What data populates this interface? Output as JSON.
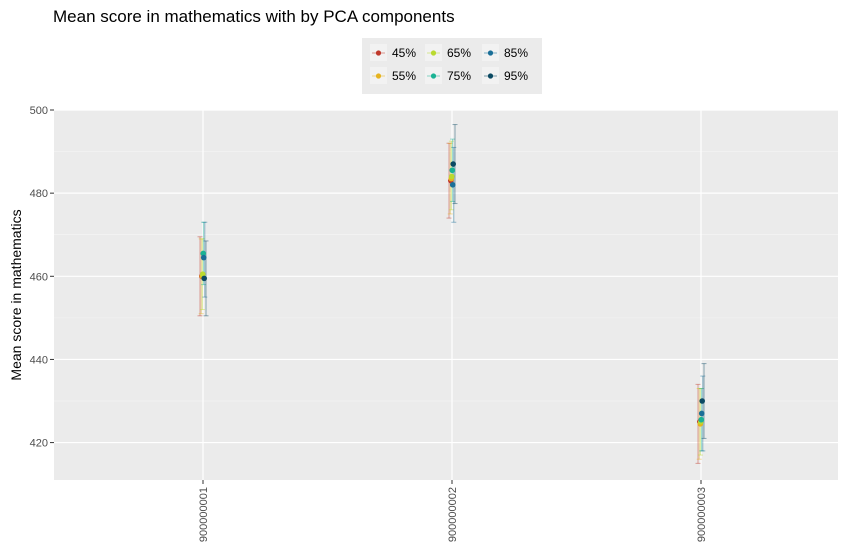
{
  "chart_data": {
    "type": "scatter",
    "title": "Mean score in mathematics with by PCA components",
    "xlabel": "",
    "ylabel": "Mean score in mathematics",
    "categories": [
      "900000001",
      "900000002",
      "900000003"
    ],
    "ylim": [
      411,
      500
    ],
    "yticks": [
      420,
      440,
      460,
      480,
      500
    ],
    "grid": true,
    "legend_position": "top",
    "error_bars": true,
    "series": [
      {
        "name": "45%",
        "color": "#c0392b",
        "points": [
          {
            "y": 460,
            "lo": 450.5,
            "hi": 469.5
          },
          {
            "y": 483,
            "lo": 474,
            "hi": 492
          },
          {
            "y": 425,
            "lo": 415,
            "hi": 434
          }
        ]
      },
      {
        "name": "55%",
        "color": "#e6b31e",
        "points": [
          {
            "y": 460,
            "lo": 451,
            "hi": 469
          },
          {
            "y": 483.5,
            "lo": 475,
            "hi": 492
          },
          {
            "y": 424.5,
            "lo": 416,
            "hi": 433
          }
        ]
      },
      {
        "name": "65%",
        "color": "#bada2f",
        "points": [
          {
            "y": 460.5,
            "lo": 452,
            "hi": 469
          },
          {
            "y": 484,
            "lo": 476,
            "hi": 492.5
          },
          {
            "y": 425,
            "lo": 417,
            "hi": 433
          }
        ]
      },
      {
        "name": "75%",
        "color": "#1ab394",
        "points": [
          {
            "y": 465.5,
            "lo": 458,
            "hi": 473
          },
          {
            "y": 485.5,
            "lo": 478,
            "hi": 493
          },
          {
            "y": 425.5,
            "lo": 418,
            "hi": 433
          }
        ]
      },
      {
        "name": "85%",
        "color": "#1a6f98",
        "points": [
          {
            "y": 464.5,
            "lo": 455,
            "hi": 473
          },
          {
            "y": 482,
            "lo": 473,
            "hi": 491
          },
          {
            "y": 427,
            "lo": 418,
            "hi": 436
          }
        ]
      },
      {
        "name": "95%",
        "color": "#0b4a63",
        "points": [
          {
            "y": 459.5,
            "lo": 450.5,
            "hi": 468.5
          },
          {
            "y": 487,
            "lo": 477.5,
            "hi": 496.5
          },
          {
            "y": 430,
            "lo": 421,
            "hi": 439
          }
        ]
      }
    ]
  }
}
